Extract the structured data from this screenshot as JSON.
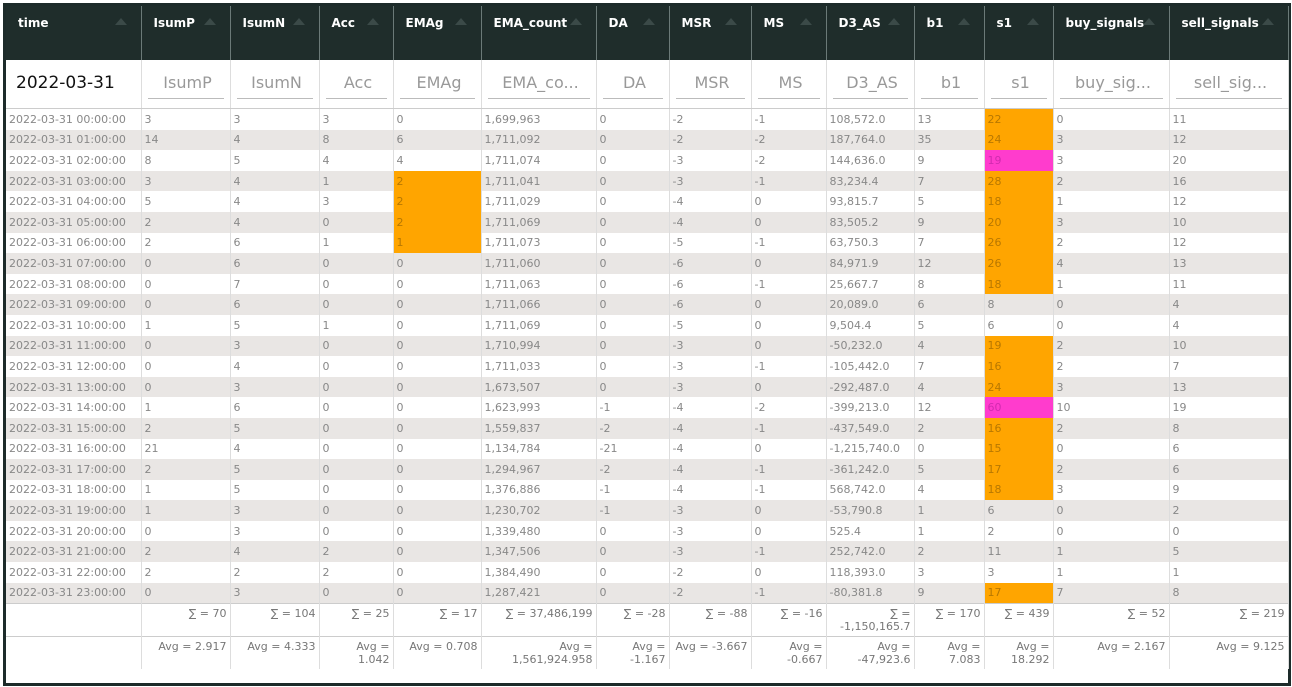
{
  "table": {
    "columns": [
      "time",
      "IsumP",
      "IsumN",
      "Acc",
      "EMAg",
      "EMA_count",
      "DA",
      "MSR",
      "MS",
      "D3_AS",
      "b1",
      "s1",
      "buy_signals",
      "sell_signals"
    ],
    "filters": [
      "2022-03-31",
      "IsumP",
      "IsumN",
      "Acc",
      "EMAg",
      "EMA_co...",
      "DA",
      "MSR",
      "MS",
      "D3_AS",
      "b1",
      "s1",
      "buy_sig...",
      "sell_sig..."
    ],
    "rows": [
      [
        "2022-03-31 00:00:00",
        "3",
        "3",
        "3",
        "0",
        "1,699,963",
        "0",
        "-2",
        "-1",
        "108,572.0",
        "13",
        "22",
        "0",
        "11"
      ],
      [
        "2022-03-31 01:00:00",
        "14",
        "4",
        "8",
        "6",
        "1,711,092",
        "0",
        "-2",
        "-2",
        "187,764.0",
        "35",
        "24",
        "3",
        "12"
      ],
      [
        "2022-03-31 02:00:00",
        "8",
        "5",
        "4",
        "4",
        "1,711,074",
        "0",
        "-3",
        "-2",
        "144,636.0",
        "9",
        "19",
        "3",
        "20"
      ],
      [
        "2022-03-31 03:00:00",
        "3",
        "4",
        "1",
        "2",
        "1,711,041",
        "0",
        "-3",
        "-1",
        "83,234.4",
        "7",
        "28",
        "2",
        "16"
      ],
      [
        "2022-03-31 04:00:00",
        "5",
        "4",
        "3",
        "2",
        "1,711,029",
        "0",
        "-4",
        "0",
        "93,815.7",
        "5",
        "18",
        "1",
        "12"
      ],
      [
        "2022-03-31 05:00:00",
        "2",
        "4",
        "0",
        "2",
        "1,711,069",
        "0",
        "-4",
        "0",
        "83,505.2",
        "9",
        "20",
        "3",
        "10"
      ],
      [
        "2022-03-31 06:00:00",
        "2",
        "6",
        "1",
        "1",
        "1,711,073",
        "0",
        "-5",
        "-1",
        "63,750.3",
        "7",
        "26",
        "2",
        "12"
      ],
      [
        "2022-03-31 07:00:00",
        "0",
        "6",
        "0",
        "0",
        "1,711,060",
        "0",
        "-6",
        "0",
        "84,971.9",
        "12",
        "26",
        "4",
        "13"
      ],
      [
        "2022-03-31 08:00:00",
        "0",
        "7",
        "0",
        "0",
        "1,711,063",
        "0",
        "-6",
        "-1",
        "25,667.7",
        "8",
        "18",
        "1",
        "11"
      ],
      [
        "2022-03-31 09:00:00",
        "0",
        "6",
        "0",
        "0",
        "1,711,066",
        "0",
        "-6",
        "0",
        "20,089.0",
        "6",
        "8",
        "0",
        "4"
      ],
      [
        "2022-03-31 10:00:00",
        "1",
        "5",
        "1",
        "0",
        "1,711,069",
        "0",
        "-5",
        "0",
        "9,504.4",
        "5",
        "6",
        "0",
        "4"
      ],
      [
        "2022-03-31 11:00:00",
        "0",
        "3",
        "0",
        "0",
        "1,710,994",
        "0",
        "-3",
        "0",
        "-50,232.0",
        "4",
        "19",
        "2",
        "10"
      ],
      [
        "2022-03-31 12:00:00",
        "0",
        "4",
        "0",
        "0",
        "1,711,033",
        "0",
        "-3",
        "-1",
        "-105,442.0",
        "7",
        "16",
        "2",
        "7"
      ],
      [
        "2022-03-31 13:00:00",
        "0",
        "3",
        "0",
        "0",
        "1,673,507",
        "0",
        "-3",
        "0",
        "-292,487.0",
        "4",
        "24",
        "3",
        "13"
      ],
      [
        "2022-03-31 14:00:00",
        "1",
        "6",
        "0",
        "0",
        "1,623,993",
        "-1",
        "-4",
        "-2",
        "-399,213.0",
        "12",
        "60",
        "10",
        "19"
      ],
      [
        "2022-03-31 15:00:00",
        "2",
        "5",
        "0",
        "0",
        "1,559,837",
        "-2",
        "-4",
        "-1",
        "-437,549.0",
        "2",
        "16",
        "2",
        "8"
      ],
      [
        "2022-03-31 16:00:00",
        "21",
        "4",
        "0",
        "0",
        "1,134,784",
        "-21",
        "-4",
        "0",
        "-1,215,740.0",
        "0",
        "15",
        "0",
        "6"
      ],
      [
        "2022-03-31 17:00:00",
        "2",
        "5",
        "0",
        "0",
        "1,294,967",
        "-2",
        "-4",
        "-1",
        "-361,242.0",
        "5",
        "17",
        "2",
        "6"
      ],
      [
        "2022-03-31 18:00:00",
        "1",
        "5",
        "0",
        "0",
        "1,376,886",
        "-1",
        "-4",
        "-1",
        "568,742.0",
        "4",
        "18",
        "3",
        "9"
      ],
      [
        "2022-03-31 19:00:00",
        "1",
        "3",
        "0",
        "0",
        "1,230,702",
        "-1",
        "-3",
        "0",
        "-53,790.8",
        "1",
        "6",
        "0",
        "2"
      ],
      [
        "2022-03-31 20:00:00",
        "0",
        "3",
        "0",
        "0",
        "1,339,480",
        "0",
        "-3",
        "0",
        "525.4",
        "1",
        "2",
        "0",
        "0"
      ],
      [
        "2022-03-31 21:00:00",
        "2",
        "4",
        "2",
        "0",
        "1,347,506",
        "0",
        "-3",
        "-1",
        "252,742.0",
        "2",
        "11",
        "1",
        "5"
      ],
      [
        "2022-03-31 22:00:00",
        "2",
        "2",
        "2",
        "0",
        "1,384,490",
        "0",
        "-2",
        "0",
        "118,393.0",
        "3",
        "3",
        "1",
        "1"
      ],
      [
        "2022-03-31 23:00:00",
        "0",
        "3",
        "0",
        "0",
        "1,287,421",
        "0",
        "-2",
        "-1",
        "-80,381.8",
        "9",
        "17",
        "7",
        "8"
      ]
    ],
    "sums": [
      "∑ = 70",
      "∑ = 104",
      "∑ = 25",
      "∑ = 17",
      "∑ = 37,486,199",
      "∑ = -28",
      "∑ = -88",
      "∑ = -16",
      "∑ = -1,150,165.7",
      "∑ = 170",
      "∑ = 439",
      "∑ = 52",
      "∑ = 219"
    ],
    "avgs": [
      "Avg = 2.917",
      "Avg = 4.333",
      "Avg = 1.042",
      "Avg = 0.708",
      "Avg = 1,561,924.958",
      "Avg = -1.167",
      "Avg = -3.667",
      "Avg = -0.667",
      "Avg = -47,923.6",
      "Avg = 7.083",
      "Avg = 18.292",
      "Avg = 2.167",
      "Avg = 9.125"
    ]
  }
}
